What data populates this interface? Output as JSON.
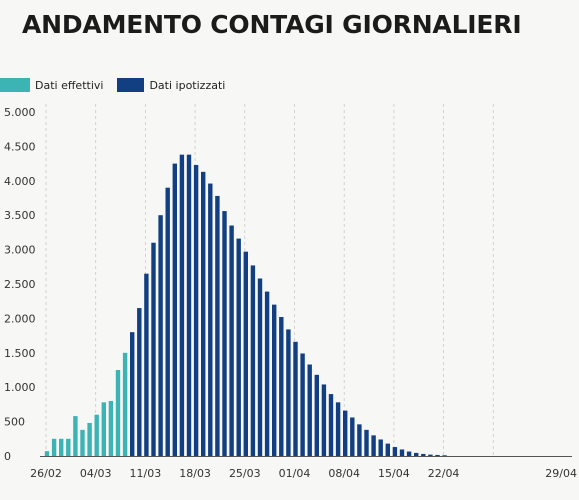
{
  "title": "ANDAMENTO CONTAGI GIORNALIERI",
  "chart_data": {
    "type": "bar",
    "title": "ANDAMENTO CONTAGI GIORNALIERI",
    "xlabel": "",
    "ylabel": "",
    "ylim": [
      0,
      5000
    ],
    "yticks": [
      0,
      500,
      1000,
      1500,
      2000,
      2500,
      3000,
      3500,
      4000,
      4500,
      5000
    ],
    "ytick_labels": [
      "0",
      "500",
      "1.000",
      "1.500",
      "2.000",
      "2.500",
      "3.000",
      "3.500",
      "4.000",
      "4.500",
      "5.000"
    ],
    "grid": "vertical dashed, weekly",
    "legend": "top-left",
    "x_start": "26/02",
    "xtick_labels": [
      "26/02",
      "04/03",
      "11/03",
      "18/03",
      "25/03",
      "01/04",
      "08/04",
      "15/04",
      "22/04",
      "29/04"
    ],
    "series": [
      {
        "name": "Dati effettivi",
        "color": "#3cb4b4",
        "start_index": 0,
        "values": [
          70,
          250,
          250,
          250,
          580,
          380,
          480,
          600,
          780,
          800,
          1250,
          1500
        ]
      },
      {
        "name": "Dati ipotizzati",
        "color": "#123f82",
        "start_index": 12,
        "values": [
          1800,
          2150,
          2650,
          3100,
          3500,
          3900,
          4250,
          4380,
          4380,
          4230,
          4130,
          3960,
          3780,
          3560,
          3350,
          3160,
          2970,
          2770,
          2580,
          2390,
          2200,
          2020,
          1840,
          1660,
          1490,
          1330,
          1180,
          1040,
          900,
          780,
          660,
          560,
          460,
          380,
          300,
          240,
          180,
          130,
          95,
          65,
          45,
          30,
          20,
          15,
          10
        ]
      }
    ]
  }
}
